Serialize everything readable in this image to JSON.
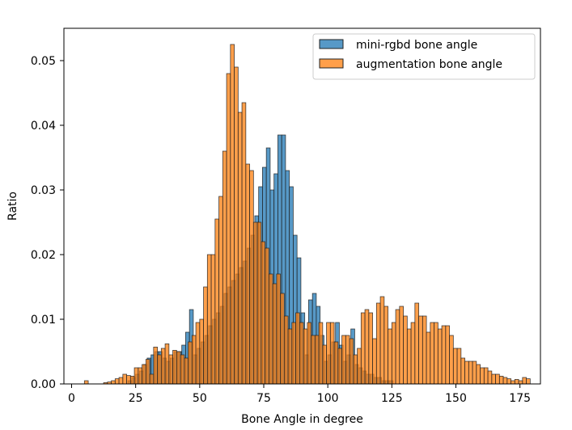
{
  "chart_data": {
    "type": "bar",
    "subtype": "overlapping-histogram",
    "title": "",
    "xlabel": "Bone Angle in degree",
    "ylabel": "Ratio",
    "xlim": [
      -3,
      183
    ],
    "ylim": [
      0,
      0.055
    ],
    "bin_width": 1.5,
    "xticks": [
      0,
      25,
      50,
      75,
      100,
      125,
      150,
      175
    ],
    "yticks": [
      0.0,
      0.01,
      0.02,
      0.03,
      0.04,
      0.05
    ],
    "xtick_labels": [
      "0",
      "25",
      "50",
      "75",
      "100",
      "125",
      "150",
      "175"
    ],
    "ytick_labels": [
      "0.00",
      "0.01",
      "0.02",
      "0.03",
      "0.04",
      "0.05"
    ],
    "grid": false,
    "legend_position": "top-right",
    "series": [
      {
        "name": "mini-rgbd bone angle",
        "color": "#1f77b4",
        "opacity": 0.75,
        "bin_starts": [
          22,
          23.5,
          25,
          26.5,
          28,
          29.5,
          31,
          32.5,
          34,
          35.5,
          37,
          38.5,
          40,
          41.5,
          43,
          44.5,
          46,
          47.5,
          49,
          50.5,
          52,
          53.5,
          55,
          56.5,
          58,
          59.5,
          61,
          62.5,
          64,
          65.5,
          67,
          68.5,
          70,
          71.5,
          73,
          74.5,
          76,
          77.5,
          79,
          80.5,
          82,
          83.5,
          85,
          86.5,
          88,
          89.5,
          91,
          92.5,
          94,
          95.5,
          97,
          98.5,
          100,
          101.5,
          103,
          104.5,
          106,
          107.5,
          109,
          110.5,
          112,
          113.5,
          115,
          116.5,
          118,
          119.5,
          121,
          122.5,
          124
        ],
        "values": [
          0.0005,
          0.001,
          0.0015,
          0.002,
          0.003,
          0.004,
          0.0045,
          0.005,
          0.005,
          0.004,
          0.0035,
          0.004,
          0.005,
          0.005,
          0.006,
          0.008,
          0.0115,
          0.0045,
          0.0055,
          0.0065,
          0.0075,
          0.009,
          0.01,
          0.011,
          0.012,
          0.014,
          0.015,
          0.016,
          0.017,
          0.018,
          0.019,
          0.021,
          0.023,
          0.026,
          0.0305,
          0.0335,
          0.0365,
          0.03,
          0.0325,
          0.0385,
          0.0385,
          0.033,
          0.0305,
          0.023,
          0.0195,
          0.011,
          0.0045,
          0.013,
          0.014,
          0.012,
          0.0075,
          0.0035,
          0.0045,
          0.0065,
          0.0095,
          0.006,
          0.0035,
          0.0045,
          0.0085,
          0.003,
          0.0025,
          0.002,
          0.0015,
          0.0015,
          0.001,
          0.001,
          0.0005,
          0.0005,
          0.0005
        ]
      },
      {
        "name": "augmentation bone angle",
        "color": "#ff7f0e",
        "opacity": 0.75,
        "bin_starts": [
          5,
          6.5,
          8,
          9.5,
          11,
          12.5,
          14,
          15.5,
          17,
          18.5,
          20,
          21.5,
          23,
          24.5,
          26,
          27.5,
          29,
          30.5,
          32,
          33.5,
          35,
          36.5,
          38,
          39.5,
          41,
          42.5,
          44,
          45.5,
          47,
          48.5,
          50,
          51.5,
          53,
          54.5,
          56,
          57.5,
          59,
          60.5,
          62,
          63.5,
          65,
          66.5,
          68,
          69.5,
          71,
          72.5,
          74,
          75.5,
          77,
          78.5,
          80,
          81.5,
          83,
          84.5,
          86,
          87.5,
          89,
          90.5,
          92,
          93.5,
          95,
          96.5,
          98,
          99.5,
          101,
          102.5,
          104,
          105.5,
          107,
          108.5,
          110,
          111.5,
          113,
          114.5,
          116,
          117.5,
          119,
          120.5,
          122,
          123.5,
          125,
          126.5,
          128,
          129.5,
          131,
          132.5,
          134,
          135.5,
          137,
          138.5,
          140,
          141.5,
          143,
          144.5,
          146,
          147.5,
          149,
          150.5,
          152,
          153.5,
          155,
          156.5,
          158,
          159.5,
          161,
          162.5,
          164,
          165.5,
          167,
          168.5,
          170,
          171.5,
          173,
          174.5,
          176,
          177.5
        ],
        "values": [
          0.0005,
          0.0,
          0.0,
          0.0,
          0.0,
          0.0002,
          0.0003,
          0.0005,
          0.0008,
          0.001,
          0.0015,
          0.0013,
          0.0012,
          0.0025,
          0.0025,
          0.003,
          0.0038,
          0.0015,
          0.0057,
          0.0045,
          0.0055,
          0.0062,
          0.0045,
          0.0052,
          0.005,
          0.0045,
          0.004,
          0.0065,
          0.0075,
          0.0095,
          0.01,
          0.015,
          0.02,
          0.02,
          0.0255,
          0.029,
          0.036,
          0.048,
          0.0525,
          0.049,
          0.042,
          0.0435,
          0.034,
          0.033,
          0.025,
          0.025,
          0.022,
          0.021,
          0.017,
          0.0155,
          0.017,
          0.014,
          0.0105,
          0.0085,
          0.0095,
          0.011,
          0.0095,
          0.0085,
          0.0095,
          0.0075,
          0.0075,
          0.0095,
          0.006,
          0.0095,
          0.0095,
          0.0065,
          0.0055,
          0.0075,
          0.0075,
          0.007,
          0.0045,
          0.0055,
          0.011,
          0.0115,
          0.011,
          0.007,
          0.0125,
          0.0135,
          0.012,
          0.0085,
          0.0095,
          0.0115,
          0.012,
          0.0105,
          0.0085,
          0.0095,
          0.0125,
          0.0105,
          0.0105,
          0.008,
          0.0095,
          0.0095,
          0.0085,
          0.009,
          0.009,
          0.0075,
          0.0055,
          0.0055,
          0.004,
          0.0035,
          0.0035,
          0.0035,
          0.003,
          0.0025,
          0.0025,
          0.002,
          0.0015,
          0.0015,
          0.0012,
          0.001,
          0.0008,
          0.0005,
          0.0007,
          0.0005,
          0.001,
          0.0008
        ]
      }
    ]
  }
}
